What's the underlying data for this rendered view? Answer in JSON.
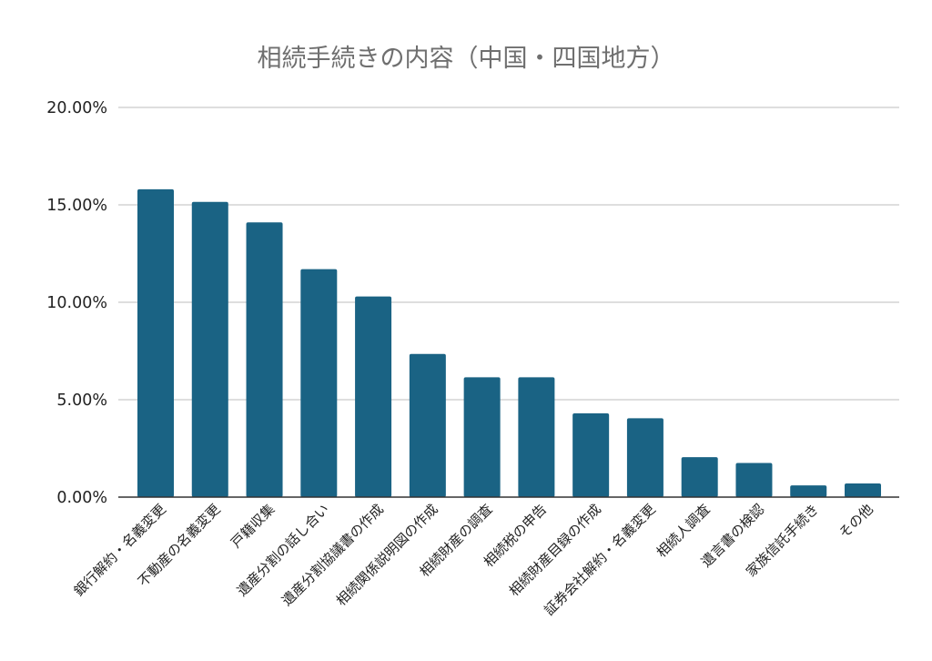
{
  "chart_data": {
    "type": "bar",
    "title": "相続手続きの内容（中国・四国地方）",
    "xlabel": "",
    "ylabel": "",
    "categories": [
      "銀行解約・名義変更",
      "不動産の名義変更",
      "戸籍収集",
      "遺産分割の話し合い",
      "遺産分割協議書の作成",
      "相続関係説明図の作成",
      "相続財産の調査",
      "相続税の申告",
      "相続財産目録の作成",
      "証券会社解約・名義変更",
      "相続人調査",
      "遺言書の検認",
      "家族信託手続き",
      "その他"
    ],
    "values": [
      15.8,
      15.15,
      14.1,
      11.7,
      10.3,
      7.35,
      6.15,
      6.15,
      4.3,
      4.05,
      2.05,
      1.75,
      0.6,
      0.7
    ],
    "y_ticks": [
      "0.00%",
      "5.00%",
      "10.00%",
      "15.00%",
      "20.00%"
    ],
    "ylim": [
      0,
      20
    ],
    "grid": true,
    "legend": "none",
    "bar_color": "#1a6384"
  }
}
